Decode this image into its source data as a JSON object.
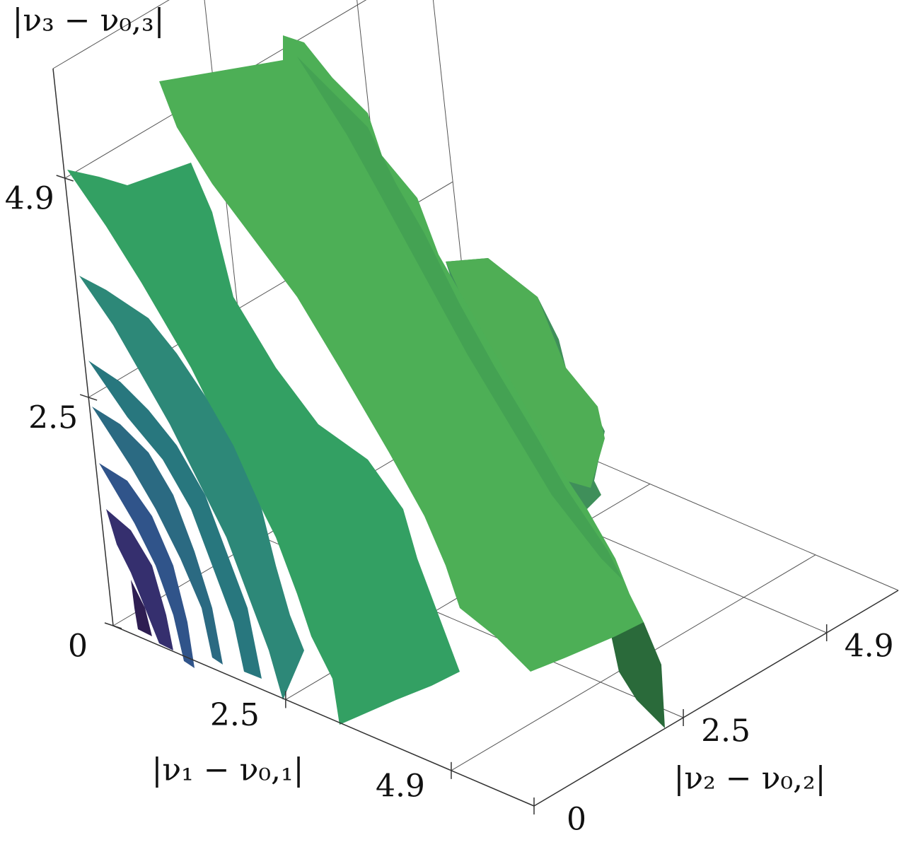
{
  "chart_data": {
    "type": "isosurface3d",
    "x_label": "|ν₁ − ν₀,₁|",
    "y_label": "|ν₂ − ν₀,₂|",
    "z_label": "|ν₃ − ν₀,₃|",
    "xlim": [
      0,
      6.1
    ],
    "ylim": [
      0,
      6.1
    ],
    "zlim": [
      0,
      6.1
    ],
    "xticks": [
      2.5,
      4.9
    ],
    "yticks": [
      0,
      2.5,
      4.9
    ],
    "zticks": [
      0,
      2.5,
      4.9
    ],
    "grid": true
  }
}
